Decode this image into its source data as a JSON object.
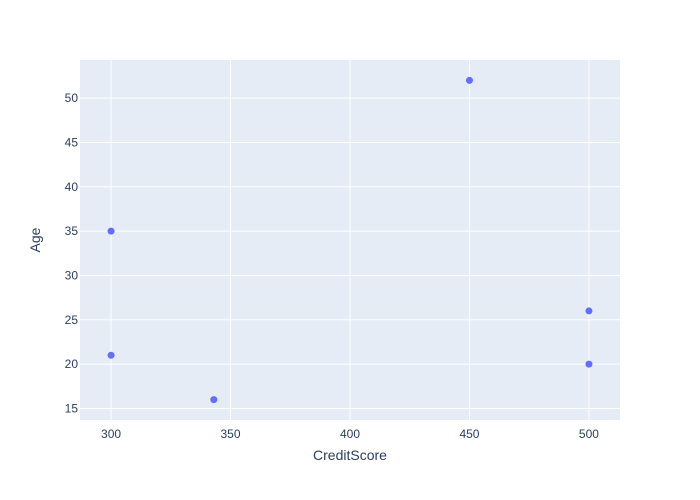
{
  "chart_data": {
    "type": "scatter",
    "xlabel": "CreditScore",
    "ylabel": "Age",
    "x_ticks": [
      300,
      350,
      400,
      450,
      500
    ],
    "y_ticks": [
      15,
      20,
      25,
      30,
      35,
      40,
      45,
      50
    ],
    "xlim": [
      287,
      513
    ],
    "ylim": [
      13.7,
      54.3
    ],
    "grid": true,
    "series": [
      {
        "points": [
          {
            "x": 300,
            "y": 35
          },
          {
            "x": 300,
            "y": 21
          },
          {
            "x": 343,
            "y": 16
          },
          {
            "x": 450,
            "y": 52
          },
          {
            "x": 500,
            "y": 26
          },
          {
            "x": 500,
            "y": 20
          }
        ]
      }
    ],
    "colors": {
      "plot_bg": "#e5ecf6",
      "grid": "#ffffff",
      "marker": "#636efa",
      "text": "#2a3f5f"
    }
  }
}
